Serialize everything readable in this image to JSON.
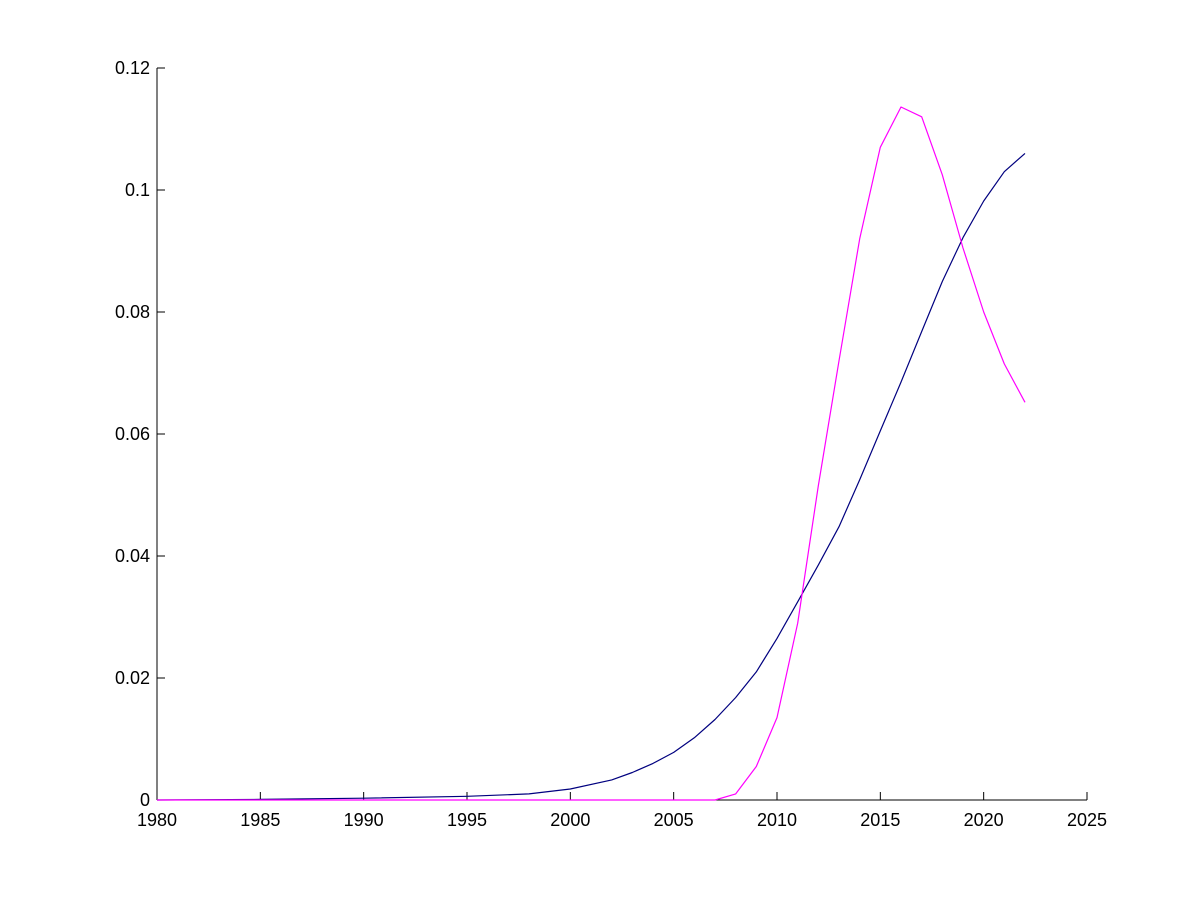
{
  "chart_data": {
    "type": "line",
    "xlim": [
      1980,
      2025
    ],
    "ylim": [
      0,
      0.12
    ],
    "xticks": [
      1980,
      1985,
      1990,
      1995,
      2000,
      2005,
      2010,
      2015,
      2020,
      2025
    ],
    "yticks": [
      0,
      0.02,
      0.04,
      0.06,
      0.08,
      0.1,
      0.12
    ],
    "xtick_labels": [
      "1980",
      "1985",
      "1990",
      "1995",
      "2000",
      "2005",
      "2010",
      "2015",
      "2020",
      "2025"
    ],
    "ytick_labels": [
      "0",
      "0.02",
      "0.04",
      "0.06",
      "0.08",
      "0.1",
      "0.12"
    ],
    "grid": false,
    "series": [
      {
        "color": "#00007f",
        "x": [
          1980,
          1985,
          1990,
          1995,
          1998,
          2000,
          2002,
          2003,
          2004,
          2005,
          2006,
          2007,
          2008,
          2009,
          2010,
          2011,
          2012,
          2013,
          2014,
          2015,
          2016,
          2017,
          2018,
          2019,
          2020,
          2021,
          2022
        ],
        "y": [
          0.0,
          0.0001,
          0.0003,
          0.0006,
          0.001,
          0.0018,
          0.0033,
          0.0045,
          0.006,
          0.0078,
          0.0102,
          0.0132,
          0.0168,
          0.021,
          0.0265,
          0.0325,
          0.0385,
          0.0448,
          0.0525,
          0.0605,
          0.0685,
          0.0768,
          0.085,
          0.0922,
          0.0982,
          0.103,
          0.106
        ]
      },
      {
        "color": "#ff00ff",
        "x": [
          1980,
          1990,
          2000,
          2007,
          2008,
          2009,
          2010,
          2011,
          2012,
          2013,
          2014,
          2015,
          2016,
          2017,
          2018,
          2019,
          2020,
          2021,
          2022
        ],
        "y": [
          0.0,
          0.0,
          0.0,
          0.0,
          0.001,
          0.0055,
          0.0135,
          0.029,
          0.0515,
          0.072,
          0.092,
          0.107,
          0.1136,
          0.112,
          0.1025,
          0.0905,
          0.08,
          0.0715,
          0.0652
        ]
      }
    ]
  }
}
